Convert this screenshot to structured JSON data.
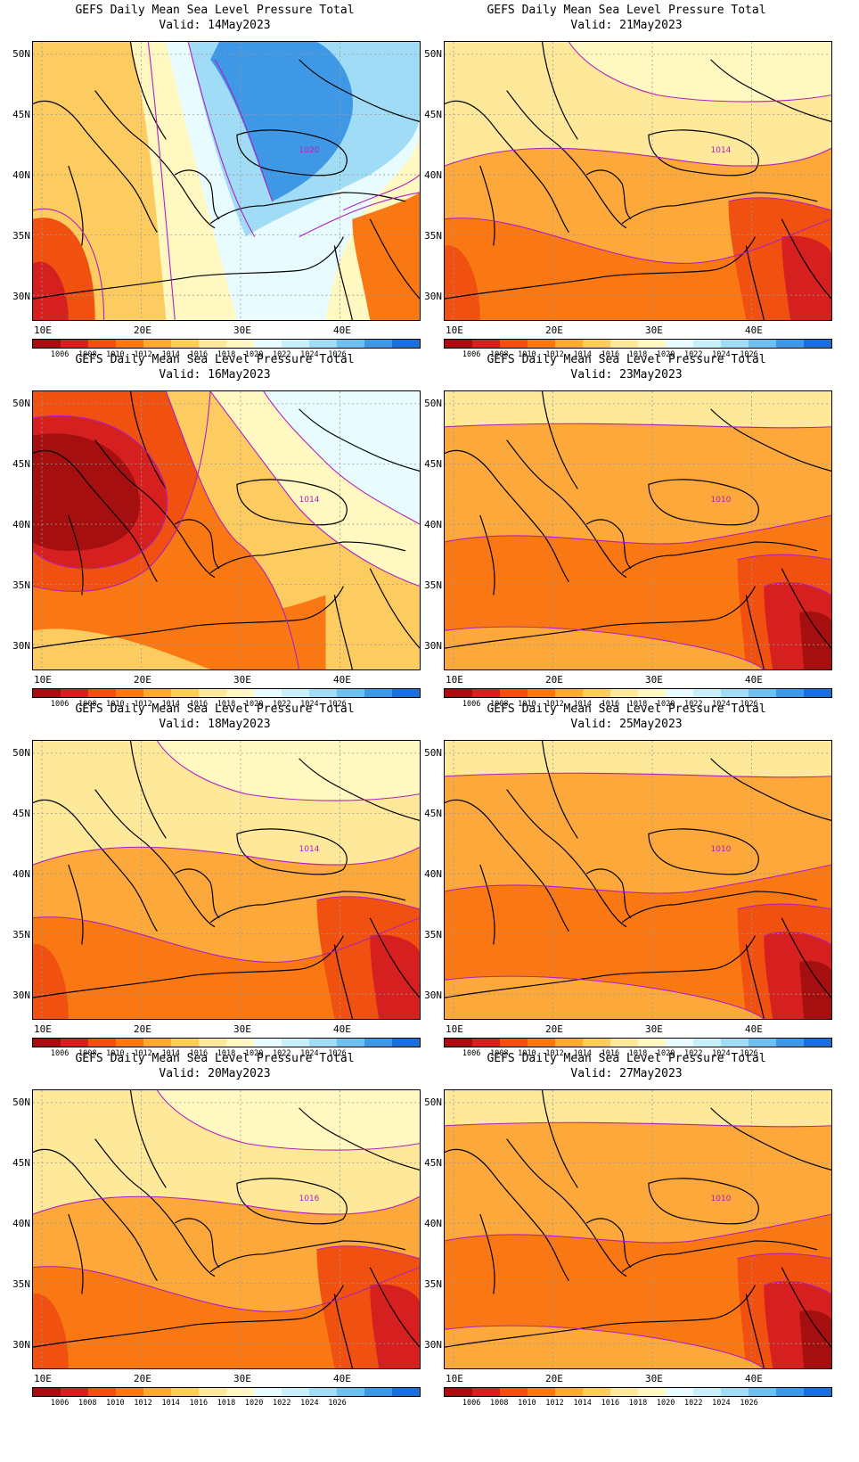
{
  "palette": {
    "bins": [
      "#a50f0f",
      "#d62020",
      "#f05010",
      "#fa7814",
      "#fca83a",
      "#fdcc60",
      "#fee89a",
      "#fff8c0",
      "#e8fcff",
      "#c8f0fa",
      "#a0dcf5",
      "#6ec0f0",
      "#3e98e6",
      "#1a70d8"
    ],
    "contour": "#b020c0",
    "coast": "#000000",
    "grid": "#9a9a9a"
  },
  "colorbar_labels": [
    "1006",
    "1008",
    "1010",
    "1012",
    "1014",
    "1016",
    "1018",
    "1020",
    "1022",
    "1024",
    "1026"
  ],
  "lat_ticks": [
    "50N",
    "45N",
    "40N",
    "35N",
    "30N"
  ],
  "lon_ticks": [
    "10E",
    "20E",
    "30E",
    "40E"
  ],
  "panels": [
    {
      "title": "GEFS Daily Mean Sea Level Pressure Total",
      "valid": "Valid: 14May2023",
      "contour_label": "1020",
      "regime": "high"
    },
    {
      "title": "GEFS Daily Mean Sea Level Pressure Total",
      "valid": "Valid: 21May2023",
      "contour_label": "1014",
      "regime": "mild"
    },
    {
      "title": "GEFS Daily Mean Sea Level Pressure Total",
      "valid": "Valid: 16May2023",
      "contour_label": "1014",
      "regime": "west-low"
    },
    {
      "title": "GEFS Daily Mean Sea Level Pressure Total",
      "valid": "Valid: 23May2023",
      "contour_label": "1010",
      "regime": "low"
    },
    {
      "title": "GEFS Daily Mean Sea Level Pressure Total",
      "valid": "Valid: 18May2023",
      "contour_label": "1014",
      "regime": "mild"
    },
    {
      "title": "GEFS Daily Mean Sea Level Pressure Total",
      "valid": "Valid: 25May2023",
      "contour_label": "1010",
      "regime": "low"
    },
    {
      "title": "GEFS Daily Mean Sea Level Pressure Total",
      "valid": "Valid: 20May2023",
      "contour_label": "1016",
      "regime": "mild"
    },
    {
      "title": "GEFS Daily Mean Sea Level Pressure Total",
      "valid": "Valid: 27May2023",
      "contour_label": "1010",
      "regime": "low"
    }
  ]
}
